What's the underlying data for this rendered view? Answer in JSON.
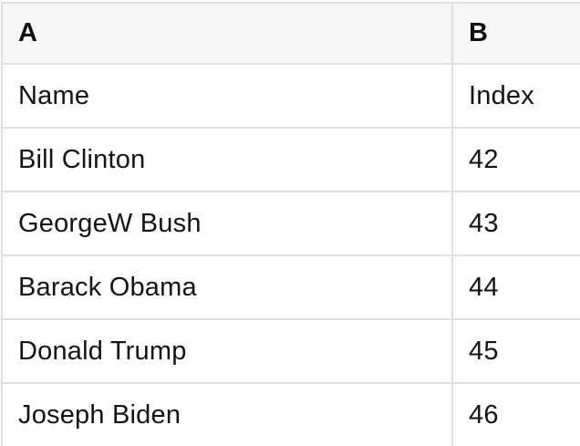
{
  "table": {
    "columns": [
      "A",
      "B"
    ],
    "rows": [
      [
        "Name",
        "Index"
      ],
      [
        "Bill Clinton",
        "42"
      ],
      [
        "GeorgeW Bush",
        "43"
      ],
      [
        "Barack Obama",
        "44"
      ],
      [
        "Donald Trump",
        "45"
      ],
      [
        "Joseph Biden",
        "46"
      ]
    ]
  },
  "colors": {
    "header_background": "#f7f7f7",
    "row_background": "#ffffff",
    "border": "#e0e0e0",
    "text": "#141414"
  }
}
